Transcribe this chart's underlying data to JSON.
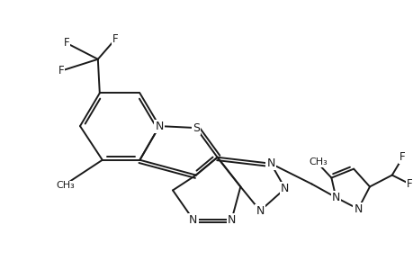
{
  "bg_color": "#ffffff",
  "line_color": "#1a1a1a",
  "line_width": 1.4,
  "font_size": 8.5,
  "figsize": [
    4.6,
    3.0
  ],
  "dpi": 100,
  "xlim": [
    -1.0,
    10.5
  ],
  "ylim": [
    -1.0,
    6.5
  ]
}
